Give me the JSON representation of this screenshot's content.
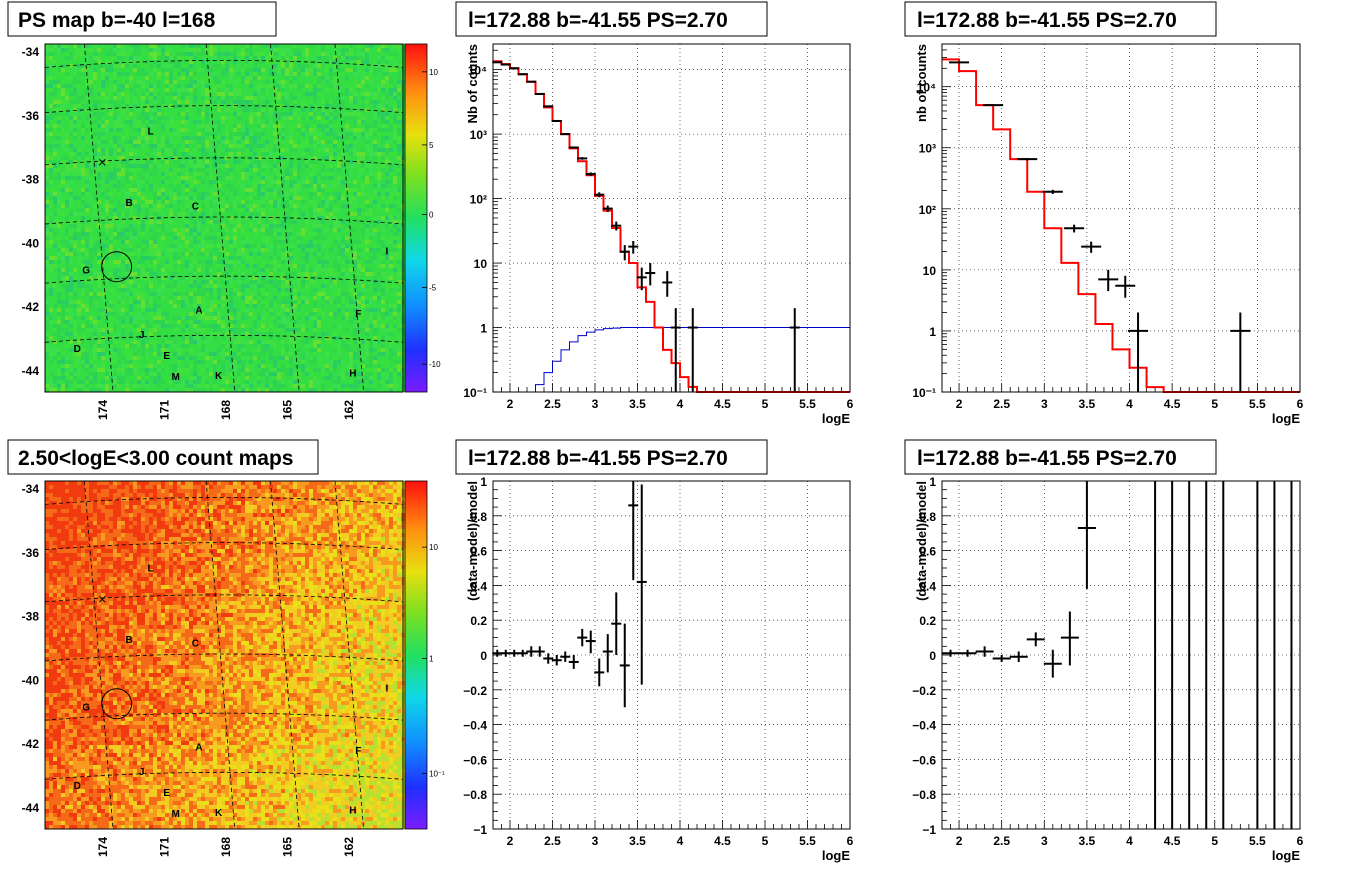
{
  "colors": {
    "data": "#000000",
    "model": "#ff0000",
    "blue_curve": "#0000cc",
    "grid": "#000000",
    "map_top": "#33dd44",
    "map_bottom": "#f07020"
  },
  "maps": [
    {
      "title": "PS map b=-40 l=168",
      "y_ticks": [
        "-34",
        "-36",
        "-38",
        "-40",
        "-42",
        "-44"
      ],
      "x_ticks": [
        "174",
        "171",
        "168",
        "165",
        "162"
      ],
      "colorbar_ticks": [
        "10",
        "5",
        "0",
        "-5",
        "-10"
      ],
      "colorbar_scale": "linear",
      "sources": [
        "L",
        "B",
        "C",
        "G",
        "I",
        "A",
        "F",
        "J",
        "D",
        "E",
        "M",
        "K",
        "H"
      ],
      "marker_icon": "x-mark-icon",
      "circle_icon": "circle-icon"
    },
    {
      "title": "2.50<logE<3.00 count maps",
      "y_ticks": [
        "-34",
        "-36",
        "-38",
        "-40",
        "-42",
        "-44"
      ],
      "x_ticks": [
        "174",
        "171",
        "168",
        "165",
        "162"
      ],
      "colorbar_ticks": [
        "10",
        "1",
        "10⁻¹"
      ],
      "colorbar_scale": "log",
      "sources": [
        "L",
        "B",
        "C",
        "G",
        "I",
        "A",
        "F",
        "J",
        "D",
        "E",
        "M",
        "K",
        "H"
      ],
      "marker_icon": "x-mark-icon",
      "circle_icon": "circle-icon"
    }
  ],
  "chart_data": [
    {
      "type": "line",
      "title": "l=172.88 b=-41.55 PS=2.70",
      "xlabel": "logE",
      "ylabel": "Nb of counts",
      "yscale": "log",
      "xlim": [
        1.8,
        6
      ],
      "ylim": [
        0.1,
        25000
      ],
      "x_ticks": [
        "2",
        "2.5",
        "3",
        "3.5",
        "4",
        "4.5",
        "5",
        "5.5",
        "6"
      ],
      "y_ticks": [
        "10⁴",
        "10³",
        "10²",
        "10",
        "1",
        "10⁻¹"
      ],
      "grid": true,
      "points": [
        {
          "x": 1.85,
          "y": 13000,
          "ey": [
            12800,
            13200
          ]
        },
        {
          "x": 1.95,
          "y": 12000,
          "ey": [
            11800,
            12200
          ]
        },
        {
          "x": 2.05,
          "y": 10500,
          "ey": [
            10300,
            10700
          ]
        },
        {
          "x": 2.15,
          "y": 8500,
          "ey": [
            8300,
            8700
          ]
        },
        {
          "x": 2.25,
          "y": 6500,
          "ey": [
            6350,
            6650
          ]
        },
        {
          "x": 2.35,
          "y": 4200,
          "ey": [
            4100,
            4300
          ]
        },
        {
          "x": 2.45,
          "y": 2700,
          "ey": [
            2650,
            2750
          ]
        },
        {
          "x": 2.55,
          "y": 1600,
          "ey": [
            1560,
            1640
          ]
        },
        {
          "x": 2.65,
          "y": 1000,
          "ey": [
            970,
            1030
          ]
        },
        {
          "x": 2.75,
          "y": 620,
          "ey": [
            600,
            640
          ]
        },
        {
          "x": 2.85,
          "y": 420,
          "ey": [
            400,
            440
          ]
        },
        {
          "x": 2.95,
          "y": 240,
          "ey": [
            225,
            255
          ]
        },
        {
          "x": 3.05,
          "y": 115,
          "ey": [
            105,
            125
          ]
        },
        {
          "x": 3.15,
          "y": 70,
          "ey": [
            62,
            78
          ]
        },
        {
          "x": 3.25,
          "y": 38,
          "ey": [
            32,
            44
          ]
        },
        {
          "x": 3.35,
          "y": 15,
          "ey": [
            11,
            19
          ]
        },
        {
          "x": 3.45,
          "y": 18,
          "ey": [
            14,
            22
          ]
        },
        {
          "x": 3.55,
          "y": 6,
          "ey": [
            3.8,
            8.5
          ]
        },
        {
          "x": 3.65,
          "y": 7,
          "ey": [
            4.5,
            10
          ]
        },
        {
          "x": 3.85,
          "y": 5,
          "ey": [
            3,
            7.5
          ]
        },
        {
          "x": 3.95,
          "y": 1,
          "ey": [
            0.1,
            2.0
          ]
        },
        {
          "x": 4.15,
          "y": 1,
          "ey": [
            0.1,
            2.0
          ]
        },
        {
          "x": 5.35,
          "y": 1,
          "ey": [
            0.1,
            2.0
          ]
        }
      ],
      "model_steps": {
        "edges": [
          1.8,
          1.9,
          2.0,
          2.1,
          2.2,
          2.3,
          2.4,
          2.5,
          2.6,
          2.7,
          2.8,
          2.9,
          3.0,
          3.1,
          3.2,
          3.3,
          3.4,
          3.5,
          3.6,
          3.7,
          3.8,
          3.9,
          4.0,
          4.1,
          4.2,
          6.0
        ],
        "values": [
          13500,
          12200,
          10500,
          8500,
          6500,
          4200,
          2600,
          1600,
          1000,
          600,
          380,
          230,
          110,
          65,
          35,
          15,
          10,
          4.2,
          2.5,
          1.0,
          0.45,
          0.28,
          0.17,
          0.12,
          0.1
        ]
      },
      "blue_steps": {
        "edges": [
          2.2,
          2.3,
          2.4,
          2.5,
          2.6,
          2.7,
          2.8,
          2.9,
          3.0,
          3.1,
          3.2,
          3.3,
          6.0
        ],
        "values": [
          0.1,
          0.13,
          0.2,
          0.3,
          0.45,
          0.6,
          0.75,
          0.85,
          0.92,
          0.96,
          0.98,
          1.0
        ]
      }
    },
    {
      "type": "line",
      "title": "l=172.88 b=-41.55 PS=2.70",
      "xlabel": "logE",
      "ylabel": "nb of counts",
      "yscale": "log",
      "xlim": [
        1.8,
        6
      ],
      "ylim": [
        0.1,
        50000
      ],
      "x_ticks": [
        "2",
        "2.5",
        "3",
        "3.5",
        "4",
        "4.5",
        "5",
        "5.5",
        "6"
      ],
      "y_ticks": [
        "10⁴",
        "10³",
        "10²",
        "10",
        "1",
        "10⁻¹"
      ],
      "grid": true,
      "points": [
        {
          "x": 2.0,
          "y": 25000,
          "ey": [
            24500,
            25500
          ]
        },
        {
          "x": 2.4,
          "y": 5000,
          "ey": [
            4900,
            5100
          ]
        },
        {
          "x": 2.8,
          "y": 650,
          "ey": [
            620,
            680
          ]
        },
        {
          "x": 3.1,
          "y": 190,
          "ey": [
            175,
            205
          ]
        },
        {
          "x": 3.35,
          "y": 48,
          "ey": [
            41,
            55
          ]
        },
        {
          "x": 3.55,
          "y": 24,
          "ey": [
            19,
            29
          ]
        },
        {
          "x": 3.75,
          "y": 7,
          "ey": [
            4.5,
            10
          ]
        },
        {
          "x": 3.95,
          "y": 5.5,
          "ey": [
            3.5,
            8
          ]
        },
        {
          "x": 4.1,
          "y": 1,
          "ey": [
            0.1,
            2.0
          ]
        },
        {
          "x": 5.3,
          "y": 1,
          "ey": [
            0.1,
            2.0
          ]
        }
      ],
      "model_steps": {
        "edges": [
          1.8,
          2.0,
          2.2,
          2.4,
          2.6,
          2.8,
          3.0,
          3.2,
          3.4,
          3.6,
          3.8,
          4.0,
          4.2,
          4.4,
          4.6,
          6.0
        ],
        "values": [
          28000,
          18000,
          5000,
          2000,
          650,
          190,
          48,
          13,
          4,
          1.3,
          0.5,
          0.25,
          0.12,
          0.1,
          0.1
        ]
      }
    },
    {
      "type": "scatter",
      "title": "l=172.88 b=-41.55 PS=2.70",
      "xlabel": "logE",
      "ylabel": "(data-model)/model",
      "xlim": [
        1.8,
        6
      ],
      "ylim": [
        -1,
        1
      ],
      "x_ticks": [
        "2",
        "2.5",
        "3",
        "3.5",
        "4",
        "4.5",
        "5",
        "5.5",
        "6"
      ],
      "y_ticks": [
        "1",
        "0.8",
        "0.6",
        "0.4",
        "0.2",
        "0",
        "−0.2",
        "−0.4",
        "−0.6",
        "−0.8",
        "−1"
      ],
      "grid": true,
      "points": [
        {
          "x": 1.85,
          "y": 0.01,
          "ey": [
            -0.01,
            0.03
          ]
        },
        {
          "x": 1.95,
          "y": 0.01,
          "ey": [
            -0.01,
            0.03
          ]
        },
        {
          "x": 2.05,
          "y": 0.01,
          "ey": [
            -0.01,
            0.03
          ]
        },
        {
          "x": 2.15,
          "y": 0.01,
          "ey": [
            -0.01,
            0.03
          ]
        },
        {
          "x": 2.25,
          "y": 0.02,
          "ey": [
            -0.01,
            0.05
          ]
        },
        {
          "x": 2.35,
          "y": 0.02,
          "ey": [
            -0.01,
            0.05
          ]
        },
        {
          "x": 2.45,
          "y": -0.02,
          "ey": [
            -0.05,
            0.01
          ]
        },
        {
          "x": 2.55,
          "y": -0.03,
          "ey": [
            -0.06,
            0.0
          ]
        },
        {
          "x": 2.65,
          "y": -0.01,
          "ey": [
            -0.04,
            0.02
          ]
        },
        {
          "x": 2.75,
          "y": -0.04,
          "ey": [
            -0.08,
            0.0
          ]
        },
        {
          "x": 2.85,
          "y": 0.1,
          "ey": [
            0.05,
            0.15
          ]
        },
        {
          "x": 2.95,
          "y": 0.08,
          "ey": [
            0.01,
            0.14
          ]
        },
        {
          "x": 3.05,
          "y": -0.1,
          "ey": [
            -0.18,
            -0.02
          ]
        },
        {
          "x": 3.15,
          "y": 0.02,
          "ey": [
            -0.1,
            0.12
          ]
        },
        {
          "x": 3.25,
          "y": 0.18,
          "ey": [
            0.0,
            0.36
          ]
        },
        {
          "x": 3.35,
          "y": -0.06,
          "ey": [
            -0.3,
            0.18
          ]
        },
        {
          "x": 3.45,
          "y": 0.86,
          "ey": [
            0.43,
            1.0
          ]
        },
        {
          "x": 3.55,
          "y": 0.42,
          "ey": [
            -0.17,
            0.98
          ]
        }
      ]
    },
    {
      "type": "scatter",
      "title": "l=172.88 b=-41.55 PS=2.70",
      "xlabel": "logE",
      "ylabel": "(data-model)/model",
      "xlim": [
        1.8,
        6
      ],
      "ylim": [
        -1,
        1
      ],
      "x_ticks": [
        "2",
        "2.5",
        "3",
        "3.5",
        "4",
        "4.5",
        "5",
        "5.5",
        "6"
      ],
      "y_ticks": [
        "1",
        "0.8",
        "0.6",
        "0.4",
        "0.2",
        "0",
        "−0.2",
        "−0.4",
        "−0.6",
        "−0.8",
        "−1"
      ],
      "grid": true,
      "points": [
        {
          "x": 1.9,
          "y": 0.01,
          "ey": [
            -0.01,
            0.03
          ]
        },
        {
          "x": 2.1,
          "y": 0.01,
          "ey": [
            -0.01,
            0.03
          ]
        },
        {
          "x": 2.3,
          "y": 0.02,
          "ey": [
            -0.01,
            0.05
          ]
        },
        {
          "x": 2.5,
          "y": -0.02,
          "ey": [
            -0.04,
            0.0
          ]
        },
        {
          "x": 2.7,
          "y": -0.01,
          "ey": [
            -0.04,
            0.02
          ]
        },
        {
          "x": 2.9,
          "y": 0.09,
          "ey": [
            0.05,
            0.13
          ]
        },
        {
          "x": 3.1,
          "y": -0.05,
          "ey": [
            -0.13,
            0.03
          ]
        },
        {
          "x": 3.3,
          "y": 0.1,
          "ey": [
            -0.06,
            0.25
          ]
        },
        {
          "x": 3.5,
          "y": 0.73,
          "ey": [
            0.38,
            1.0
          ]
        },
        {
          "x": 4.3,
          "y": null,
          "ey": [
            -1,
            1
          ]
        },
        {
          "x": 4.5,
          "y": null,
          "ey": [
            -1,
            1
          ]
        },
        {
          "x": 4.7,
          "y": null,
          "ey": [
            -1,
            1
          ]
        },
        {
          "x": 4.9,
          "y": null,
          "ey": [
            -1,
            1
          ]
        },
        {
          "x": 5.1,
          "y": null,
          "ey": [
            -1,
            1
          ]
        },
        {
          "x": 5.5,
          "y": null,
          "ey": [
            -1,
            1
          ]
        },
        {
          "x": 5.7,
          "y": null,
          "ey": [
            -1,
            1
          ]
        },
        {
          "x": 5.9,
          "y": null,
          "ey": [
            -1,
            1
          ]
        }
      ]
    }
  ]
}
